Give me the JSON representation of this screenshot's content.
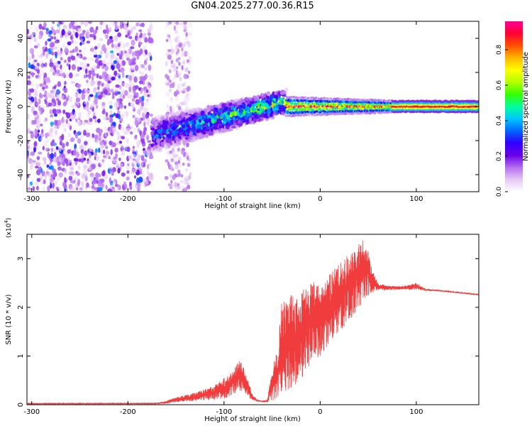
{
  "title": "GN04.2025.277.00.36.R15",
  "chart_data": [
    {
      "type": "heatmap",
      "title": "GN04.2025.277.00.36.R15",
      "xlabel": "Height of straight line (km)",
      "ylabel": "Frequency (Hz)",
      "xlim": [
        -305,
        165
      ],
      "ylim": [
        -50,
        50
      ],
      "xticks": [
        -300,
        -200,
        -100,
        0,
        100
      ],
      "yticks": [
        -40,
        -20,
        0,
        20,
        40
      ],
      "colorbar": {
        "label": "Normalized spectral amplitude",
        "range": [
          0,
          0.96
        ],
        "ticks": [
          0.0,
          0.2,
          0.4,
          0.6,
          0.8
        ],
        "colors": [
          "#ffffff",
          "#e6c8f5",
          "#b46ef0",
          "#6a00e8",
          "#3000ff",
          "#0066ff",
          "#00c8ff",
          "#00ff9c",
          "#33ff00",
          "#b4ff00",
          "#ffff00",
          "#ffb400",
          "#ff5000",
          "#ff0032",
          "#ff0096"
        ]
      },
      "features": [
        {
          "name": "diffuse-noise",
          "x_range": [
            -305,
            -175
          ],
          "freq_range": [
            -50,
            50
          ],
          "amplitude": 0.12
        },
        {
          "name": "rising-band",
          "x_range": [
            -175,
            -35
          ],
          "freq_center_start": -17,
          "freq_center_end": 3,
          "amplitude": 0.35
        },
        {
          "name": "steady-carrier",
          "x_range": [
            -35,
            165
          ],
          "freq_center": 0,
          "amplitude": 0.9
        }
      ]
    },
    {
      "type": "line",
      "title": "",
      "xlabel": "Height of straight line (km)",
      "ylabel": "SNR (10 * v/v)",
      "y_multiplier": "x10^4",
      "multiplier_base": "(x10",
      "multiplier_exp": "4",
      "multiplier_close": ")",
      "xlim": [
        -305,
        165
      ],
      "ylim": [
        0,
        3.5
      ],
      "xticks": [
        -300,
        -200,
        -100,
        0,
        100
      ],
      "yticks": [
        0,
        1,
        2,
        3
      ],
      "series": [
        {
          "name": "SNR",
          "color": "#f03c3c",
          "envelope": {
            "x": [
              -305,
              -170,
              -160,
              -150,
              -130,
              -110,
              -100,
              -90,
              -85,
              -80,
              -75,
              -70,
              -65,
              -60,
              -55,
              -50,
              -45,
              -40,
              -35,
              -30,
              -25,
              -20,
              -15,
              -10,
              -5,
              0,
              5,
              10,
              20,
              30,
              40,
              45,
              50,
              55,
              60,
              70,
              80,
              90,
              100,
              110,
              120,
              130,
              140,
              150,
              165
            ],
            "low": [
              0.01,
              0.01,
              0.02,
              0.05,
              0.08,
              0.1,
              0.12,
              0.2,
              0.3,
              0.25,
              0.15,
              0.08,
              0.06,
              0.05,
              0.05,
              0.08,
              0.1,
              0.2,
              0.3,
              0.35,
              0.4,
              0.5,
              0.7,
              0.8,
              0.9,
              1.0,
              1.1,
              1.3,
              1.5,
              1.7,
              2.0,
              2.1,
              2.2,
              2.3,
              2.35,
              2.35,
              2.36,
              2.36,
              2.36,
              2.34,
              2.33,
              2.32,
              2.3,
              2.28,
              2.25
            ],
            "high": [
              0.03,
              0.04,
              0.08,
              0.15,
              0.25,
              0.4,
              0.55,
              0.7,
              0.95,
              0.8,
              0.5,
              0.2,
              0.1,
              0.08,
              0.1,
              0.8,
              1.1,
              2.1,
              2.2,
              2.3,
              2.2,
              2.3,
              2.45,
              2.5,
              2.55,
              2.45,
              2.5,
              2.7,
              2.9,
              3.1,
              3.3,
              3.45,
              3.2,
              2.8,
              2.5,
              2.45,
              2.44,
              2.45,
              2.5,
              2.38,
              2.37,
              2.34,
              2.32,
              2.3,
              2.27
            ]
          }
        }
      ]
    }
  ]
}
